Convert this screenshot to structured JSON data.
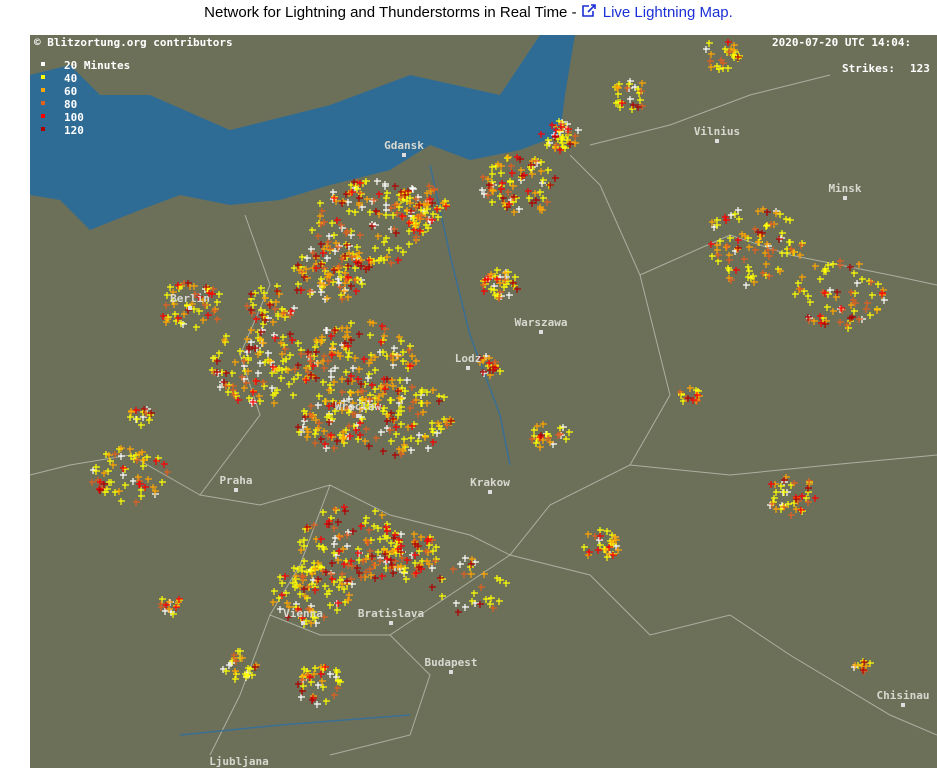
{
  "header": {
    "text": "Network for Lightning and Thunderstorms in Real Time - ",
    "link": "Live Lightning Map."
  },
  "map": {
    "attribution": "© Blitzortung.org contributors",
    "timestamp": "2020-07-20 UTC 14:04:",
    "strikes_label": "Strikes:",
    "strikes_count": 123,
    "legend": [
      "20 Minutes",
      "40",
      "60",
      "80",
      "100",
      "120"
    ],
    "cities": [
      "Gdansk",
      "Vilnius",
      "Minsk",
      "Berlin",
      "Warszawa",
      "Lodz",
      "Wroclaw",
      "Praha",
      "Krakow",
      "Bratislava",
      "Vienna",
      "Budapest",
      "Chisinau",
      "Ljubljana"
    ]
  }
}
